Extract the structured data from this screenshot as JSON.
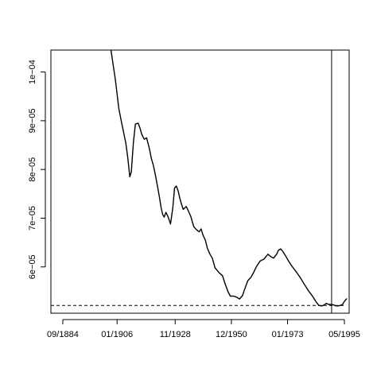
{
  "chart_data": {
    "type": "line",
    "title": "",
    "xlabel": "",
    "ylabel": "",
    "x_tick_labels": [
      "09/1884",
      "01/1906",
      "11/1928",
      "12/1950",
      "01/1973",
      "05/1995"
    ],
    "x_ticks": [
      1884.67,
      1906.0,
      1928.83,
      1950.92,
      1973.0,
      1995.33
    ],
    "xlim": [
      1880.0,
      1997.2
    ],
    "y_tick_labels": [
      "6e−05",
      "7e−05",
      "8e−05",
      "9e−05",
      "1e−04"
    ],
    "y_ticks": [
      6e-05,
      7e-05,
      8e-05,
      9e-05,
      0.0001
    ],
    "ylim": [
      5.05e-05,
      0.0001045
    ],
    "grid": false,
    "series": [
      {
        "style": "solid",
        "x": [
          1903.6,
          1905.3,
          1906.7,
          1907.8,
          1909.4,
          1910.2,
          1911.0,
          1911.6,
          1912.4,
          1913.2,
          1914.3,
          1915.0,
          1915.7,
          1916.7,
          1917.6,
          1918.6,
          1919.5,
          1920.3,
          1921.2,
          1922.0,
          1922.7,
          1923.3,
          1923.9,
          1924.5,
          1925.2,
          1926.1,
          1927.0,
          1927.9,
          1928.6,
          1929.3,
          1930.0,
          1930.6,
          1931.2,
          1932.0,
          1933.2,
          1934.1,
          1935.0,
          1935.6,
          1936.2,
          1937.3,
          1938.3,
          1939.0,
          1939.8,
          1940.7,
          1941.5,
          1942.5,
          1943.4,
          1944.5,
          1946.1,
          1947.4,
          1948.4,
          1949.6,
          1950.5,
          1951.8,
          1953.0,
          1954.1,
          1955.3,
          1955.9,
          1956.6,
          1957.4,
          1958.5,
          1959.6,
          1960.8,
          1962.2,
          1963.7,
          1965.3,
          1966.4,
          1967.5,
          1968.7,
          1969.4,
          1970.3,
          1971.1,
          1972.3,
          1973.4,
          1974.8,
          1976.4,
          1978.0,
          1979.6,
          1981.2,
          1982.8,
          1984.1,
          1985.3,
          1986.5,
          1987.4,
          1988.2,
          1989.2,
          1990.3,
          1991.1,
          1992.0,
          1992.9,
          1993.7,
          1994.6,
          1995.3,
          1996.3
        ],
        "y": [
          0.0001045,
          9.85e-05,
          9.25e-05,
          8.95e-05,
          8.55e-05,
          8.25e-05,
          7.85e-05,
          7.95e-05,
          8.55e-05,
          8.93e-05,
          8.95e-05,
          8.85e-05,
          8.72e-05,
          8.62e-05,
          8.65e-05,
          8.45e-05,
          8.22e-05,
          8.08e-05,
          7.85e-05,
          7.62e-05,
          7.42e-05,
          7.22e-05,
          7.08e-05,
          7.02e-05,
          7.12e-05,
          7.02e-05,
          6.88e-05,
          7.22e-05,
          7.62e-05,
          7.66e-05,
          7.56e-05,
          7.42e-05,
          7.31e-05,
          7.18e-05,
          7.24e-05,
          7.14e-05,
          7.03e-05,
          6.92e-05,
          6.82e-05,
          6.76e-05,
          6.72e-05,
          6.78e-05,
          6.65e-05,
          6.55e-05,
          6.38e-05,
          6.26e-05,
          6.18e-05,
          5.98e-05,
          5.88e-05,
          5.82e-05,
          5.66e-05,
          5.49e-05,
          5.4e-05,
          5.4e-05,
          5.38e-05,
          5.34e-05,
          5.41e-05,
          5.51e-05,
          5.61e-05,
          5.72e-05,
          5.78e-05,
          5.88e-05,
          6.01e-05,
          6.12e-05,
          6.16e-05,
          6.26e-05,
          6.21e-05,
          6.18e-05,
          6.26e-05,
          6.34e-05,
          6.37e-05,
          6.32e-05,
          6.22e-05,
          6.12e-05,
          6.01e-05,
          5.9e-05,
          5.78e-05,
          5.64e-05,
          5.51e-05,
          5.4e-05,
          5.29e-05,
          5.21e-05,
          5.2e-05,
          5.22e-05,
          5.25e-05,
          5.23e-05,
          5.23e-05,
          5.22e-05,
          5.2e-05,
          5.2e-05,
          5.21e-05,
          5.23e-05,
          5.29e-05,
          5.35e-05
        ]
      },
      {
        "style": "dashed",
        "x": [
          1880.0,
          1995.0
        ],
        "y": [
          5.21e-05,
          5.21e-05
        ]
      }
    ],
    "vertical_line_x": 1990.3
  }
}
